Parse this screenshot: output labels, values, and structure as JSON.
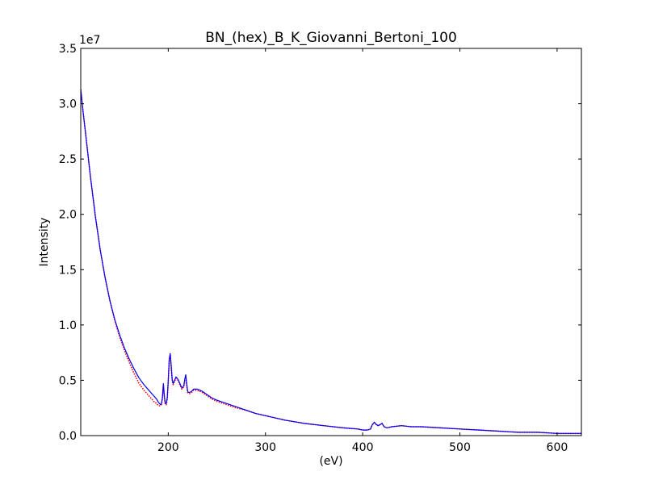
{
  "chart_data": {
    "type": "line",
    "title": "BN_(hex)_B_K_Giovanni_Bertoni_100",
    "xlabel": "(eV)",
    "ylabel": "Intensity",
    "y_scale_label": "1e7",
    "xlim": [
      110,
      625
    ],
    "ylim": [
      0,
      3.5
    ],
    "xticks": [
      200,
      300,
      400,
      500,
      600
    ],
    "xtick_labels": [
      "200",
      "300",
      "400",
      "500",
      "600"
    ],
    "yticks": [
      0.0,
      0.5,
      1.0,
      1.5,
      2.0,
      2.5,
      3.0,
      3.5
    ],
    "ytick_labels": [
      "0.0",
      "0.5",
      "1.0",
      "1.5",
      "2.0",
      "2.5",
      "3.0",
      "3.5"
    ],
    "grid": false,
    "series": [
      {
        "color": "#ff0000",
        "style": "dotted",
        "x": [
          110,
          112,
          115,
          120,
          125,
          130,
          135,
          140,
          145,
          150,
          155,
          160,
          165,
          170,
          175,
          180,
          185,
          188,
          190,
          192,
          193,
          194,
          195,
          196,
          197,
          198,
          199,
          200,
          201,
          202,
          203,
          204,
          205,
          206,
          208,
          210,
          212,
          214,
          216,
          217,
          218,
          219,
          220,
          221,
          222,
          224,
          226,
          228,
          230,
          235,
          240,
          245,
          250,
          260,
          270,
          280,
          290,
          300,
          320,
          340,
          360,
          380,
          395,
          400,
          405,
          408,
          410,
          412,
          414,
          416,
          418,
          420,
          422,
          425,
          430,
          440,
          450,
          460,
          480,
          500,
          520,
          540,
          560,
          580,
          600,
          625
        ],
        "y": [
          3.13,
          2.96,
          2.73,
          2.34,
          1.99,
          1.68,
          1.43,
          1.22,
          1.04,
          0.89,
          0.77,
          0.66,
          0.56,
          0.47,
          0.41,
          0.36,
          0.31,
          0.29,
          0.27,
          0.27,
          0.28,
          0.33,
          0.46,
          0.35,
          0.28,
          0.28,
          0.33,
          0.48,
          0.68,
          0.74,
          0.62,
          0.5,
          0.46,
          0.48,
          0.52,
          0.5,
          0.46,
          0.42,
          0.44,
          0.5,
          0.54,
          0.46,
          0.39,
          0.38,
          0.38,
          0.39,
          0.41,
          0.41,
          0.41,
          0.39,
          0.36,
          0.33,
          0.31,
          0.28,
          0.25,
          0.23,
          0.2,
          0.18,
          0.14,
          0.11,
          0.09,
          0.07,
          0.06,
          0.05,
          0.05,
          0.06,
          0.1,
          0.12,
          0.1,
          0.09,
          0.1,
          0.11,
          0.08,
          0.07,
          0.08,
          0.09,
          0.08,
          0.08,
          0.07,
          0.06,
          0.05,
          0.04,
          0.03,
          0.03,
          0.02,
          0.02
        ]
      },
      {
        "color": "#0000ff",
        "style": "solid",
        "x": [
          110,
          112,
          115,
          120,
          125,
          130,
          135,
          140,
          145,
          150,
          155,
          160,
          165,
          170,
          175,
          180,
          185,
          188,
          190,
          192,
          193,
          194,
          195,
          196,
          197,
          198,
          199,
          200,
          201,
          202,
          203,
          204,
          205,
          206,
          208,
          210,
          212,
          214,
          216,
          217,
          218,
          219,
          220,
          221,
          222,
          224,
          226,
          228,
          230,
          235,
          240,
          245,
          250,
          260,
          270,
          280,
          290,
          300,
          320,
          340,
          360,
          380,
          395,
          400,
          405,
          408,
          410,
          412,
          414,
          416,
          418,
          420,
          422,
          425,
          430,
          440,
          450,
          460,
          480,
          500,
          520,
          540,
          560,
          580,
          600,
          625
        ],
        "y": [
          3.13,
          2.96,
          2.73,
          2.34,
          1.98,
          1.68,
          1.43,
          1.22,
          1.05,
          0.91,
          0.79,
          0.69,
          0.6,
          0.52,
          0.46,
          0.41,
          0.36,
          0.33,
          0.3,
          0.28,
          0.29,
          0.34,
          0.47,
          0.36,
          0.29,
          0.29,
          0.34,
          0.49,
          0.69,
          0.74,
          0.63,
          0.51,
          0.47,
          0.49,
          0.53,
          0.51,
          0.47,
          0.43,
          0.45,
          0.51,
          0.55,
          0.47,
          0.4,
          0.39,
          0.39,
          0.4,
          0.42,
          0.42,
          0.42,
          0.4,
          0.37,
          0.34,
          0.32,
          0.29,
          0.26,
          0.23,
          0.2,
          0.18,
          0.14,
          0.11,
          0.09,
          0.07,
          0.06,
          0.05,
          0.05,
          0.06,
          0.1,
          0.12,
          0.1,
          0.09,
          0.1,
          0.11,
          0.08,
          0.07,
          0.08,
          0.09,
          0.08,
          0.08,
          0.07,
          0.06,
          0.05,
          0.04,
          0.03,
          0.03,
          0.02,
          0.02
        ]
      }
    ]
  }
}
